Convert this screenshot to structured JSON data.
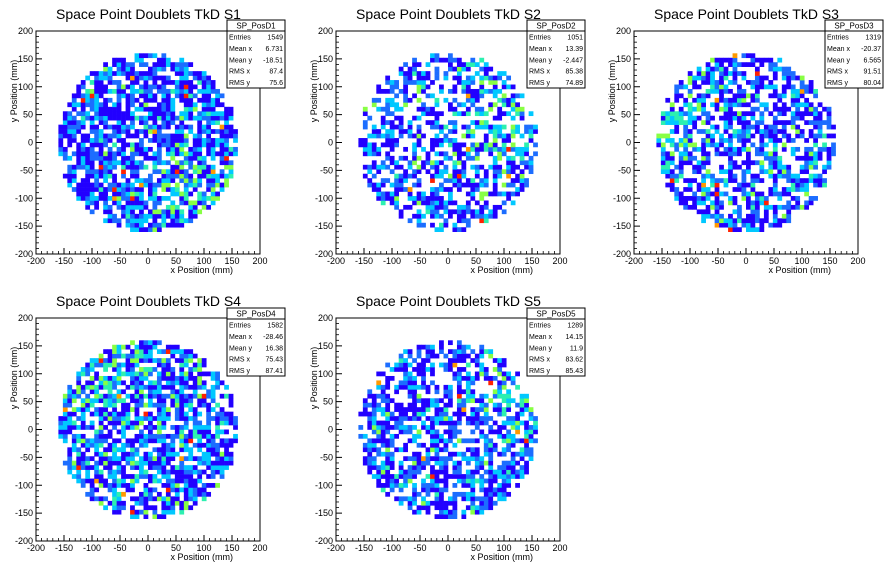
{
  "chart_data": [
    {
      "type": "heatmap",
      "title": "Space Point Doublets TkD S1",
      "xlabel": "x Position (mm)",
      "ylabel": "y Position (mm)",
      "xlim": [
        -200,
        200
      ],
      "ylim": [
        -200,
        200
      ],
      "xticks": [
        -200,
        -150,
        -100,
        -50,
        0,
        50,
        100,
        150,
        200
      ],
      "yticks": [
        -200,
        -150,
        -100,
        -50,
        0,
        50,
        100,
        150,
        200
      ],
      "stats": {
        "name": "SP_PosD1",
        "rows": [
          {
            "label": "Entries",
            "value": "1549"
          },
          {
            "label": "Mean x",
            "value": "6.731"
          },
          {
            "label": "Mean y",
            "value": "-18.51"
          },
          {
            "label": "RMS x",
            "value": "87.4"
          },
          {
            "label": "RMS y",
            "value": "75.6"
          }
        ]
      },
      "distribution": {
        "bin_width": 8,
        "radius": 160,
        "occupancy": 0.74,
        "mean_level": 1.3,
        "hot_fraction": 0.07,
        "hotspot": [
          70,
          -100
        ]
      }
    },
    {
      "type": "heatmap",
      "title": "Space Point Doublets TkD S2",
      "xlabel": "x Position (mm)",
      "ylabel": "y Position (mm)",
      "xlim": [
        -200,
        200
      ],
      "ylim": [
        -200,
        200
      ],
      "xticks": [
        -200,
        -150,
        -100,
        -50,
        0,
        50,
        100,
        150,
        200
      ],
      "yticks": [
        -200,
        -150,
        -100,
        -50,
        0,
        50,
        100,
        150,
        200
      ],
      "stats": {
        "name": "SP_PosD2",
        "rows": [
          {
            "label": "Entries",
            "value": "1051"
          },
          {
            "label": "Mean x",
            "value": "13.39"
          },
          {
            "label": "Mean y",
            "value": "-2.447"
          },
          {
            "label": "RMS x",
            "value": "85.38"
          },
          {
            "label": "RMS y",
            "value": "74.89"
          }
        ]
      },
      "distribution": {
        "bin_width": 8,
        "radius": 160,
        "occupancy": 0.55,
        "mean_level": 1.5,
        "hot_fraction": 0.12,
        "hotspot": [
          80,
          20
        ]
      }
    },
    {
      "type": "heatmap",
      "title": "Space Point Doublets TkD S3",
      "xlabel": "x Position (mm)",
      "ylabel": "y Position (mm)",
      "xlim": [
        -200,
        200
      ],
      "ylim": [
        -200,
        200
      ],
      "xticks": [
        -200,
        -150,
        -100,
        -50,
        0,
        50,
        100,
        150,
        200
      ],
      "yticks": [
        -200,
        -150,
        -100,
        -50,
        0,
        50,
        100,
        150,
        200
      ],
      "stats": {
        "name": "SP_PosD3",
        "rows": [
          {
            "label": "Entries",
            "value": "1319"
          },
          {
            "label": "Mean x",
            "value": "-20.37"
          },
          {
            "label": "Mean y",
            "value": "6.565"
          },
          {
            "label": "RMS x",
            "value": "91.51"
          },
          {
            "label": "RMS y",
            "value": "80.04"
          }
        ]
      },
      "distribution": {
        "bin_width": 8,
        "radius": 160,
        "occupancy": 0.62,
        "mean_level": 1.4,
        "hot_fraction": 0.14,
        "hotspot": [
          -130,
          40
        ]
      }
    },
    {
      "type": "heatmap",
      "title": "Space Point Doublets TkD S4",
      "xlabel": "x Position (mm)",
      "ylabel": "y Position (mm)",
      "xlim": [
        -200,
        200
      ],
      "ylim": [
        -200,
        200
      ],
      "xticks": [
        -200,
        -150,
        -100,
        -50,
        0,
        50,
        100,
        150,
        200
      ],
      "yticks": [
        -200,
        -150,
        -100,
        -50,
        0,
        50,
        100,
        150,
        200
      ],
      "stats": {
        "name": "SP_PosD4",
        "rows": [
          {
            "label": "Entries",
            "value": "1582"
          },
          {
            "label": "Mean x",
            "value": "-28.46"
          },
          {
            "label": "Mean y",
            "value": "16.38"
          },
          {
            "label": "RMS x",
            "value": "75.43"
          },
          {
            "label": "RMS y",
            "value": "87.41"
          }
        ]
      },
      "distribution": {
        "bin_width": 8,
        "radius": 160,
        "occupancy": 0.72,
        "mean_level": 1.6,
        "hot_fraction": 0.16,
        "hotspot": [
          -80,
          110
        ]
      }
    },
    {
      "type": "heatmap",
      "title": "Space Point Doublets TkD S5",
      "xlabel": "x Position (mm)",
      "ylabel": "y Position (mm)",
      "xlim": [
        -200,
        200
      ],
      "ylim": [
        -200,
        200
      ],
      "xticks": [
        -200,
        -150,
        -100,
        -50,
        0,
        50,
        100,
        150,
        200
      ],
      "yticks": [
        -200,
        -150,
        -100,
        -50,
        0,
        50,
        100,
        150,
        200
      ],
      "stats": {
        "name": "SP_PosD5",
        "rows": [
          {
            "label": "Entries",
            "value": "1289"
          },
          {
            "label": "Mean x",
            "value": "14.15"
          },
          {
            "label": "Mean y",
            "value": "11.9"
          },
          {
            "label": "RMS x",
            "value": "83.62"
          },
          {
            "label": "RMS y",
            "value": "85.43"
          }
        ]
      },
      "distribution": {
        "bin_width": 8,
        "radius": 160,
        "occupancy": 0.62,
        "mean_level": 1.3,
        "hot_fraction": 0.08,
        "hotspot": [
          130,
          60
        ]
      }
    }
  ],
  "palette": [
    "#2200ff",
    "#1c6dff",
    "#00c8ff",
    "#2cf0b0",
    "#88ff44",
    "#eaff00",
    "#ff9900",
    "#ff2200"
  ]
}
